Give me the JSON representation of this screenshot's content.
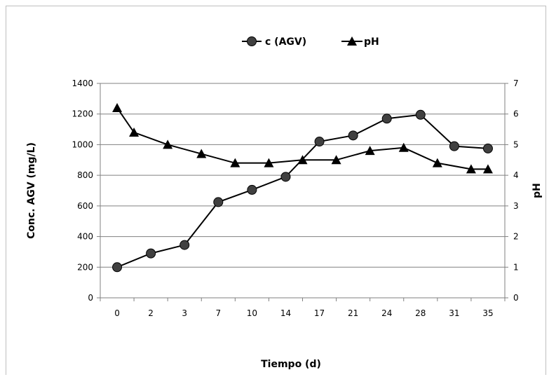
{
  "chart_data": {
    "type": "line",
    "x_categories": [
      "0",
      "2",
      "3",
      "7",
      "10",
      "14",
      "17",
      "21",
      "24",
      "28",
      "31",
      "35"
    ],
    "xlabel": "Tiempo (d)",
    "ylabel_left": "Conc. AGV (mg/L)",
    "ylabel_right": "pH",
    "ylim_left": [
      0,
      1400
    ],
    "yticks_left": [
      "0",
      "200",
      "400",
      "600",
      "800",
      "1000",
      "1200",
      "1400"
    ],
    "ylim_right": [
      0,
      7
    ],
    "yticks_right": [
      "0",
      "1",
      "2",
      "3",
      "4",
      "5",
      "6",
      "7"
    ],
    "legend_position": "top",
    "grid": "horizontal",
    "series": [
      {
        "name": "c (AGV)",
        "axis": "left",
        "marker": "circle",
        "color": "#000000",
        "marker_color": "#404040",
        "values": [
          200,
          290,
          345,
          625,
          705,
          790,
          1020,
          1060,
          1170,
          1195,
          990,
          975
        ]
      },
      {
        "name": "pH",
        "axis": "right",
        "marker": "triangle",
        "color": "#000000",
        "marker_color": "#000000",
        "x_positions": [
          "0",
          "1",
          "2",
          "3",
          "4",
          "5",
          "6",
          "7",
          "8",
          "9",
          "10",
          "11",
          "12"
        ],
        "values": [
          6.2,
          5.4,
          5.0,
          4.7,
          4.4,
          4.4,
          4.5,
          4.5,
          4.8,
          4.9,
          4.4,
          4.2,
          4.2
        ]
      }
    ]
  }
}
